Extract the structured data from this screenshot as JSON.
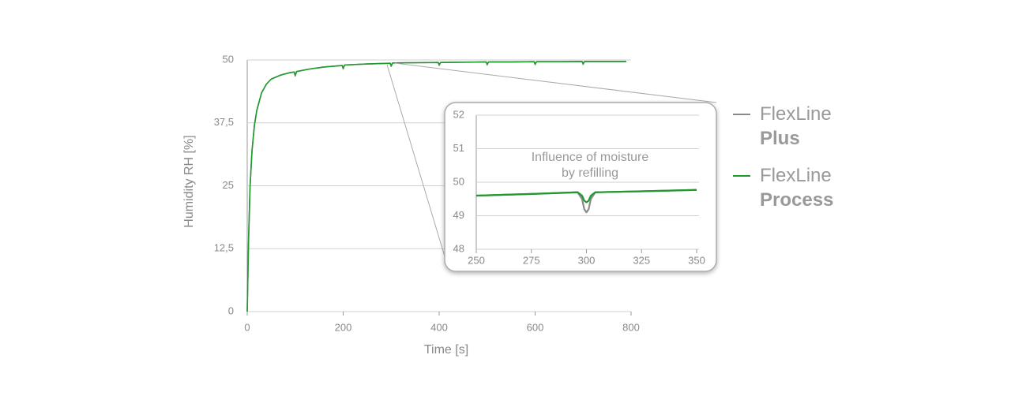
{
  "chart_data": [
    {
      "type": "line",
      "xlabel": "Time [s]",
      "ylabel": "Humidity RH [%]",
      "xlim": [
        0,
        800
      ],
      "xticks": [
        0,
        200,
        400,
        600,
        800
      ],
      "ylim": [
        0,
        50
      ],
      "yticks": [
        0,
        {
          "value": 12.5,
          "label": "12,5"
        },
        25,
        {
          "value": 37.5,
          "label": "37,5"
        },
        50
      ],
      "grid": true,
      "legend": "right",
      "x": [
        0,
        3,
        6,
        10,
        15,
        20,
        30,
        40,
        50,
        70,
        90,
        98,
        100,
        103,
        130,
        160,
        198,
        200,
        203,
        250,
        298,
        300,
        303,
        350,
        398,
        400,
        403,
        450,
        498,
        500,
        503,
        550,
        598,
        600,
        603,
        650,
        698,
        700,
        703,
        790
      ],
      "series": [
        {
          "name": "FlexLine Plus",
          "color": "#8a8a8a",
          "values": [
            0,
            15,
            25,
            32,
            37,
            40,
            43.5,
            45.2,
            46.2,
            47,
            47.5,
            47.6,
            46.8,
            47.7,
            48.2,
            48.6,
            48.9,
            48.2,
            49.0,
            49.2,
            49.35,
            48.7,
            49.4,
            49.45,
            49.5,
            48.9,
            49.5,
            49.55,
            49.6,
            49.0,
            49.6,
            49.6,
            49.65,
            49.05,
            49.65,
            49.65,
            49.7,
            49.1,
            49.7,
            49.7
          ]
        },
        {
          "name": "FlexLine Process",
          "color": "#1e9a2e",
          "values": [
            0,
            15,
            25,
            32,
            37,
            40,
            43.5,
            45.2,
            46.2,
            47,
            47.5,
            47.6,
            47.0,
            47.7,
            48.2,
            48.6,
            48.9,
            48.4,
            49.0,
            49.2,
            49.35,
            48.9,
            49.4,
            49.45,
            49.5,
            49.1,
            49.5,
            49.55,
            49.6,
            49.2,
            49.6,
            49.6,
            49.65,
            49.25,
            49.65,
            49.65,
            49.7,
            49.3,
            49.7,
            49.7
          ]
        }
      ]
    },
    {
      "type": "line",
      "annotation": [
        "Influence of moisture",
        "by refilling"
      ],
      "xlim": [
        250,
        350
      ],
      "xticks": [
        250,
        275,
        300,
        325,
        350
      ],
      "ylim": [
        48,
        52
      ],
      "yticks": [
        48,
        49,
        50,
        51,
        52
      ],
      "grid": true,
      "x": [
        250,
        275,
        296,
        298,
        299,
        300,
        301,
        302,
        304,
        325,
        350
      ],
      "series": [
        {
          "color": "#8a8a8a",
          "values": [
            49.6,
            49.65,
            49.7,
            49.5,
            49.2,
            49.1,
            49.2,
            49.5,
            49.7,
            49.73,
            49.77
          ]
        },
        {
          "color": "#1e9a2e",
          "values": [
            49.6,
            49.65,
            49.7,
            49.6,
            49.45,
            49.4,
            49.45,
            49.6,
            49.7,
            49.73,
            49.77
          ]
        }
      ]
    }
  ]
}
